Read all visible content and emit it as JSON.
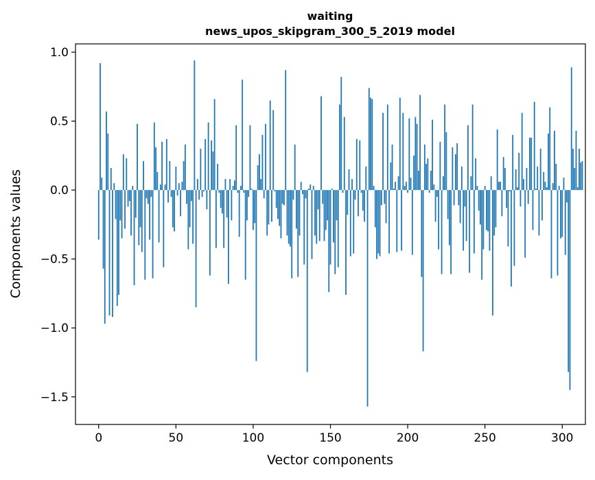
{
  "chart_data": {
    "type": "bar",
    "title": "waiting",
    "subtitle": "news_upos_skipgram_300_5_2019 model",
    "xlabel": "Vector components",
    "ylabel": "Components values",
    "xlim": [
      -15,
      315
    ],
    "ylim": [
      -1.7,
      1.06
    ],
    "xticks": [
      0,
      50,
      100,
      150,
      200,
      250,
      300
    ],
    "yticks": [
      1.0,
      0.5,
      0.0,
      -0.5,
      -1.0,
      -1.5
    ],
    "ytick_labels": [
      "1.0",
      "0.5",
      "0.0",
      "−0.5",
      "−1.0",
      "−1.5"
    ],
    "grid": false,
    "bar_color": "#1f77b4",
    "x_start": 0,
    "values": [
      -0.36,
      0.92,
      0.09,
      -0.57,
      -0.97,
      0.57,
      0.41,
      -0.91,
      0.16,
      -0.92,
      0.05,
      -0.21,
      -0.84,
      -0.76,
      -0.22,
      -0.35,
      0.26,
      -0.28,
      0.23,
      -0.12,
      -0.08,
      -0.33,
      0.03,
      -0.69,
      -0.2,
      0.48,
      -0.4,
      -0.27,
      -0.45,
      0.21,
      -0.65,
      -0.06,
      -0.1,
      -0.36,
      -0.05,
      -0.64,
      0.49,
      0.31,
      0.13,
      -0.38,
      0.04,
      0.35,
      -0.56,
      0.04,
      0.37,
      -0.09,
      0.21,
      -0.05,
      -0.27,
      -0.3,
      0.17,
      -0.04,
      0.05,
      -0.19,
      0.06,
      0.21,
      0.33,
      -0.1,
      -0.43,
      -0.27,
      -0.08,
      -0.39,
      0.94,
      -0.85,
      0.08,
      -0.07,
      0.3,
      -0.05,
      -0.01,
      0.37,
      -0.14,
      0.49,
      -0.62,
      0.36,
      0.28,
      0.66,
      -0.42,
      0.19,
      -0.02,
      -0.13,
      -0.17,
      -0.42,
      0.08,
      -0.2,
      -0.68,
      0.08,
      -0.22,
      0.03,
      0.07,
      0.47,
      -0.02,
      -0.34,
      0.03,
      0.8,
      -0.02,
      -0.65,
      -0.22,
      -0.05,
      0.47,
      0.01,
      -0.29,
      -0.24,
      -1.24,
      0.18,
      0.26,
      0.08,
      0.4,
      -0.06,
      0.48,
      -0.33,
      -0.25,
      0.65,
      -0.23,
      0.58,
      -0.01,
      -0.13,
      -0.21,
      -0.26,
      -0.35,
      -0.1,
      -0.11,
      0.87,
      -0.33,
      -0.39,
      -0.41,
      -0.64,
      -0.07,
      0.33,
      -0.28,
      -0.63,
      -0.33,
      0.06,
      -0.03,
      -0.54,
      -0.06,
      -1.32,
      0.01,
      0.04,
      -0.5,
      0.03,
      -0.33,
      -0.39,
      -0.14,
      -0.37,
      0.68,
      -0.1,
      -0.37,
      -0.29,
      -0.22,
      -0.74,
      -0.54,
      0.01,
      -0.38,
      -0.61,
      -0.22,
      -0.56,
      0.62,
      0.82,
      -0.02,
      0.53,
      -0.76,
      -0.18,
      0.15,
      -0.48,
      0.08,
      -0.46,
      -0.07,
      0.37,
      -0.19,
      0.36,
      -0.02,
      -0.15,
      -0.23,
      0.17,
      -1.57,
      0.74,
      0.67,
      0.66,
      0.03,
      -0.27,
      -0.5,
      -0.46,
      -0.48,
      -0.11,
      0.56,
      -0.1,
      -0.24,
      0.62,
      -0.46,
      0.2,
      0.33,
      0.01,
      0.06,
      -0.45,
      0.1,
      0.67,
      -0.44,
      0.56,
      0.03,
      0.06,
      -0.02,
      0.52,
      0.09,
      -0.47,
      0.25,
      0.53,
      0.48,
      0.14,
      0.69,
      -0.63,
      -1.17,
      0.33,
      0.19,
      0.23,
      -0.02,
      0.14,
      0.51,
      0.04,
      -0.23,
      -0.05,
      -0.43,
      0.35,
      -0.61,
      0.1,
      0.62,
      0.42,
      -0.21,
      -0.4,
      -0.61,
      0.31,
      -0.11,
      0.26,
      0.34,
      -0.11,
      -0.24,
      0.17,
      -0.44,
      -0.12,
      -0.37,
      0.47,
      -0.6,
      0.1,
      0.62,
      -0.46,
      0.23,
      0.03,
      -0.15,
      -0.25,
      -0.65,
      -0.43,
      0.03,
      -0.29,
      -0.3,
      -0.44,
      0.1,
      -0.91,
      -0.33,
      -0.27,
      0.44,
      0.06,
      0.06,
      -0.19,
      0.24,
      0.16,
      -0.13,
      -0.41,
      -0.01,
      -0.7,
      0.4,
      -0.55,
      0.15,
      0.02,
      0.27,
      -0.12,
      0.56,
      0.08,
      -0.49,
      0.16,
      -0.1,
      0.38,
      0.38,
      -0.29,
      0.64,
      0.01,
      0.17,
      -0.33,
      0.3,
      -0.22,
      0.13,
      0.06,
      0.02,
      0.41,
      0.6,
      -0.64,
      0.05,
      0.43,
      0.19,
      -0.62,
      0.03,
      -0.35,
      -0.34,
      0.09,
      -0.47,
      -0.09,
      -1.32,
      -1.45,
      0.89,
      0.3,
      0.16,
      0.43,
      0.02,
      0.3,
      0.2,
      0.21
    ]
  }
}
